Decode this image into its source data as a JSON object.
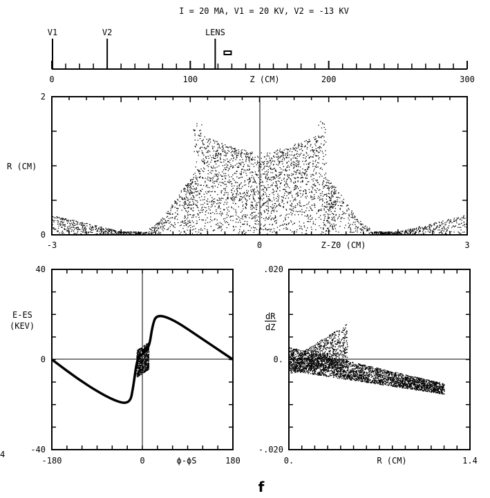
{
  "title": "I = 20 MA, V1 = 20 KV, V2 = -13 KV",
  "figure_label": "f",
  "stray_mark": "4",
  "chart_data": [
    {
      "type": "table",
      "id": "beamline",
      "xlabel": "Z (CM)",
      "xlim": [
        0,
        300
      ],
      "ticks": [
        "0",
        "100",
        "200",
        "300"
      ],
      "markers": [
        {
          "label": "V1",
          "z": 0
        },
        {
          "label": "V2",
          "z": 40
        },
        {
          "label": "LENS",
          "z": 118
        }
      ],
      "beam_position_z": 127
    },
    {
      "type": "scatter",
      "id": "r-vs-z",
      "xlabel": "Z-Z0 (CM)",
      "ylabel": "R (CM)",
      "xlim": [
        -3,
        3
      ],
      "ylim": [
        0,
        2
      ],
      "xticks": [
        "-3",
        "0",
        "3"
      ],
      "yticks": [
        "0",
        "",
        "2"
      ],
      "features": {
        "edge_peak_x": [
          -0.9,
          0.9
        ],
        "edge_peak_r": 1.65,
        "center_r": 1.15
      }
    },
    {
      "type": "line",
      "id": "energy-vs-phase",
      "xlabel": "ϕ-ϕS",
      "ylabel": "E-ES (KEV)",
      "xlim": [
        -180,
        180
      ],
      "ylim": [
        -40,
        40
      ],
      "xticks": [
        "-180",
        "0",
        "180"
      ],
      "yticks": [
        "-40",
        "0",
        "40"
      ],
      "points": [
        [
          -180,
          0
        ],
        [
          -120,
          -10
        ],
        [
          -60,
          -18
        ],
        [
          -25,
          -20
        ],
        [
          -18,
          -12
        ],
        [
          -12,
          -2
        ],
        [
          -6,
          2
        ],
        [
          0,
          2
        ],
        [
          6,
          4
        ],
        [
          14,
          6
        ],
        [
          20,
          15
        ],
        [
          28,
          20
        ],
        [
          60,
          18
        ],
        [
          120,
          9
        ],
        [
          180,
          0
        ]
      ]
    },
    {
      "type": "scatter",
      "id": "slope-vs-radius",
      "xlabel": "R (CM)",
      "ylabel": "dR/dZ",
      "xlim": [
        0,
        1.4
      ],
      "ylim": [
        -0.02,
        0.02
      ],
      "xticks": [
        "0.",
        "1.4"
      ],
      "yticks": [
        "-.020",
        "0.",
        ".020"
      ],
      "features": {
        "upper_tip": [
          0.45,
          0.008
        ],
        "lower_tip": [
          1.2,
          -0.007
        ]
      }
    }
  ]
}
